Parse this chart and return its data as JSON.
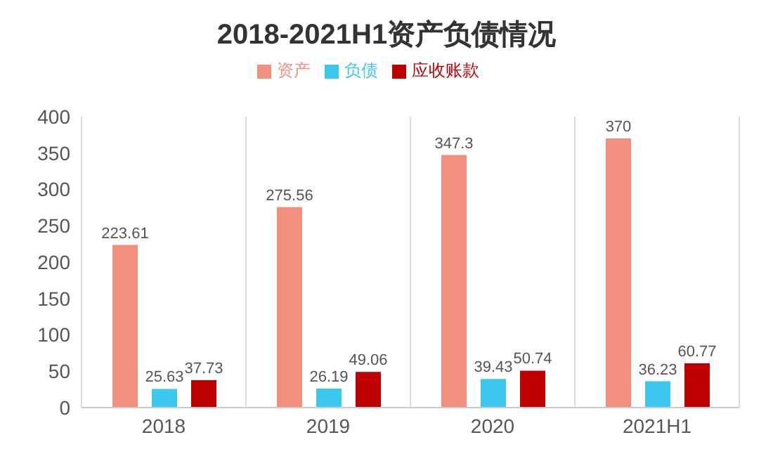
{
  "chart_data": {
    "type": "bar",
    "title": "2018-2021H1资产负债情况",
    "categories": [
      "2018",
      "2019",
      "2020",
      "2021H1"
    ],
    "series": [
      {
        "name": "资产",
        "color": "#f2907e",
        "values": [
          223.61,
          275.56,
          347.3,
          370
        ]
      },
      {
        "name": "负债",
        "color": "#3cc8ee",
        "values": [
          25.63,
          26.19,
          39.43,
          36.23
        ]
      },
      {
        "name": "应收账款",
        "color": "#c00000",
        "values": [
          37.73,
          49.06,
          50.74,
          60.77
        ]
      }
    ],
    "ylim": [
      0,
      400
    ],
    "yticks": [
      0,
      50,
      100,
      150,
      200,
      250,
      300,
      350,
      400
    ],
    "grid": "x",
    "legend": "top",
    "data_labels": true
  }
}
